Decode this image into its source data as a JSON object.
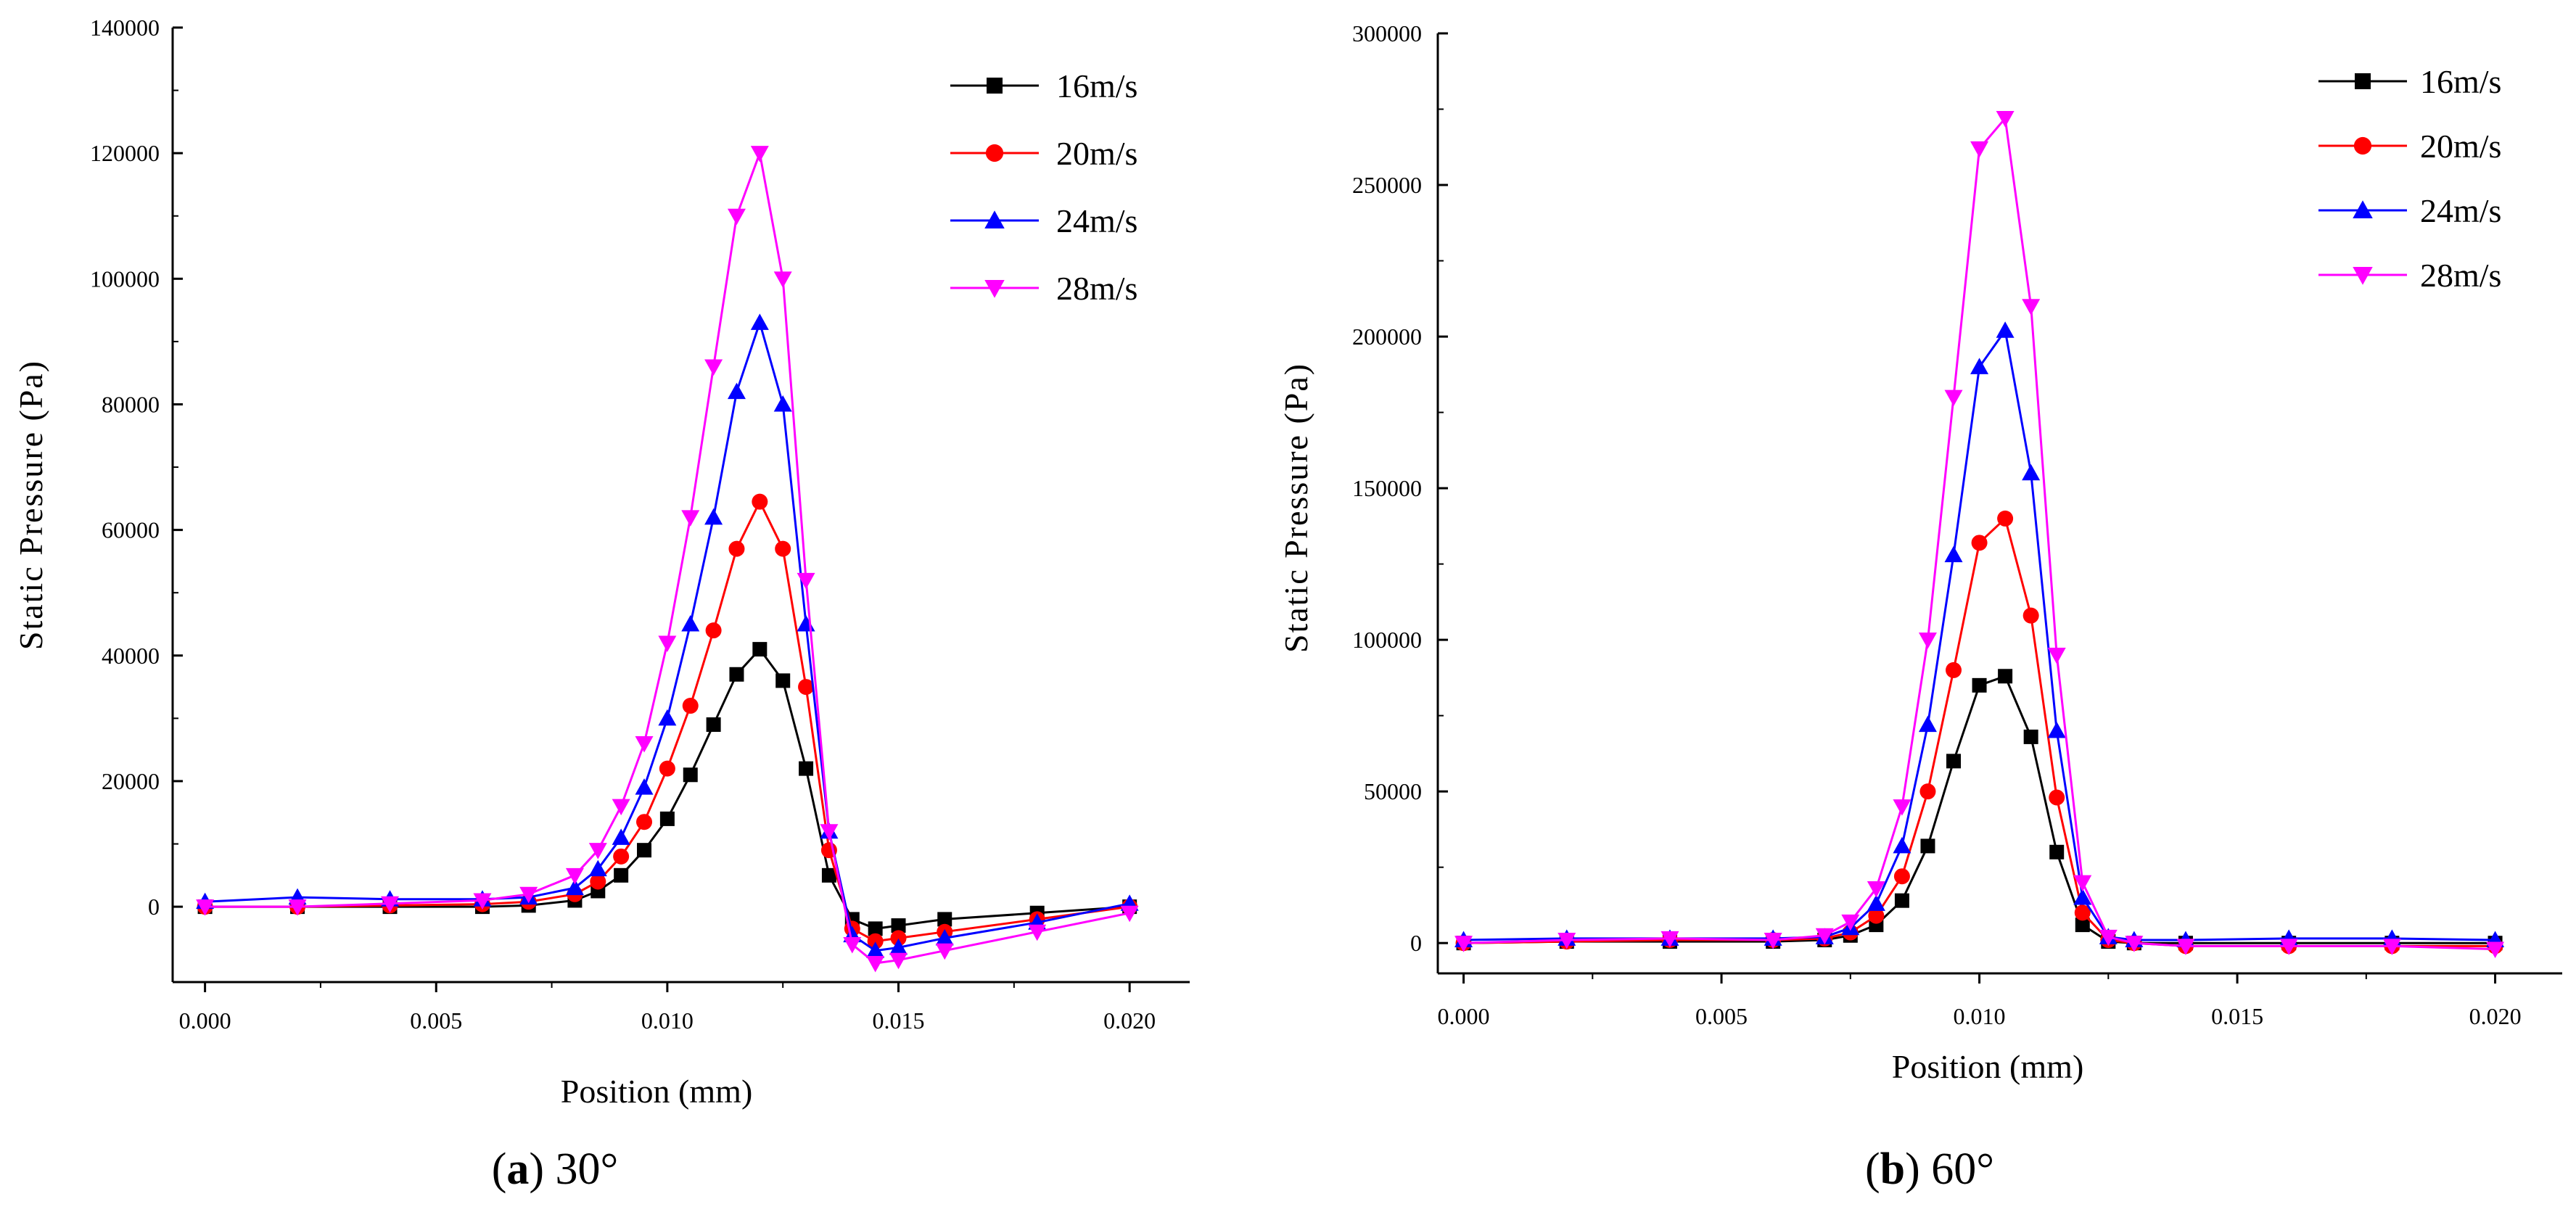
{
  "chart_data": [
    {
      "type": "line",
      "caption_letter": "a",
      "caption_angle": "30°",
      "title": "",
      "xlabel": "Position (mm)",
      "ylabel": "Static Pressure (Pa)",
      "xlim": [
        -0.0007,
        0.0213
      ],
      "ylim": [
        -12000,
        140000
      ],
      "xticks": [
        0.0,
        0.005,
        0.01,
        0.015,
        0.02
      ],
      "xtick_labels": [
        "0.000",
        "0.005",
        "0.010",
        "0.015",
        "0.020"
      ],
      "yticks": [
        0,
        20000,
        40000,
        60000,
        80000,
        100000,
        120000,
        140000
      ],
      "ytick_labels": [
        "0",
        "20000",
        "40000",
        "60000",
        "80000",
        "100000",
        "120000",
        "140000"
      ],
      "legend_position": "top-right",
      "series": [
        {
          "name": "16m/s",
          "color": "#000000",
          "marker": "square",
          "x": [
            0.0,
            0.002,
            0.004,
            0.006,
            0.007,
            0.008,
            0.0085,
            0.009,
            0.0095,
            0.01,
            0.0105,
            0.011,
            0.0115,
            0.012,
            0.0125,
            0.013,
            0.0135,
            0.014,
            0.0145,
            0.015,
            0.016,
            0.018,
            0.02
          ],
          "values": [
            0,
            0,
            0,
            0,
            200,
            1000,
            2500,
            5000,
            9000,
            14000,
            21000,
            29000,
            37000,
            41000,
            36000,
            22000,
            5000,
            -2000,
            -3500,
            -3000,
            -2000,
            -1000,
            0
          ]
        },
        {
          "name": "20m/s",
          "color": "#ff0000",
          "marker": "circle",
          "x": [
            0.0,
            0.002,
            0.004,
            0.006,
            0.007,
            0.008,
            0.0085,
            0.009,
            0.0095,
            0.01,
            0.0105,
            0.011,
            0.0115,
            0.012,
            0.0125,
            0.013,
            0.0135,
            0.014,
            0.0145,
            0.015,
            0.016,
            0.018,
            0.02
          ],
          "values": [
            0,
            0,
            200,
            400,
            800,
            2000,
            4000,
            8000,
            13500,
            22000,
            32000,
            44000,
            57000,
            64500,
            57000,
            35000,
            9000,
            -3500,
            -5500,
            -5000,
            -4000,
            -2000,
            0
          ]
        },
        {
          "name": "24m/s",
          "color": "#0000ff",
          "marker": "triangle-up",
          "x": [
            0.0,
            0.002,
            0.004,
            0.006,
            0.007,
            0.008,
            0.0085,
            0.009,
            0.0095,
            0.01,
            0.0105,
            0.011,
            0.0115,
            0.012,
            0.0125,
            0.013,
            0.0135,
            0.014,
            0.0145,
            0.015,
            0.016,
            0.018,
            0.02
          ],
          "values": [
            800,
            1500,
            1200,
            1200,
            1500,
            3000,
            6000,
            11000,
            19000,
            30000,
            45000,
            62000,
            82000,
            93000,
            80000,
            45000,
            12000,
            -4500,
            -7000,
            -6500,
            -5000,
            -2500,
            500
          ]
        },
        {
          "name": "28m/s",
          "color": "#ff00ff",
          "marker": "triangle-down",
          "x": [
            0.0,
            0.002,
            0.004,
            0.006,
            0.007,
            0.008,
            0.0085,
            0.009,
            0.0095,
            0.01,
            0.0105,
            0.011,
            0.0115,
            0.012,
            0.0125,
            0.013,
            0.0135,
            0.014,
            0.0145,
            0.015,
            0.016,
            0.018,
            0.02
          ],
          "values": [
            0,
            0,
            500,
            1000,
            2000,
            5000,
            9000,
            16000,
            26000,
            42000,
            62000,
            86000,
            110000,
            120000,
            100000,
            52000,
            12000,
            -6000,
            -9000,
            -8500,
            -7000,
            -4000,
            -1000
          ]
        }
      ]
    },
    {
      "type": "line",
      "caption_letter": "b",
      "caption_angle": "60°",
      "title": "",
      "xlabel": "Position (mm)",
      "ylabel": "Static Pressure (Pa)",
      "xlim": [
        -0.0005,
        0.0213
      ],
      "ylim": [
        -10000,
        300000
      ],
      "xticks": [
        0.0,
        0.005,
        0.01,
        0.015,
        0.02
      ],
      "xtick_labels": [
        "0.000",
        "0.005",
        "0.010",
        "0.015",
        "0.020"
      ],
      "yticks": [
        0,
        50000,
        100000,
        150000,
        200000,
        250000,
        300000
      ],
      "ytick_labels": [
        "0",
        "50000",
        "100000",
        "150000",
        "200000",
        "250000",
        "300000"
      ],
      "legend_position": "top-right",
      "series": [
        {
          "name": "16m/s",
          "color": "#000000",
          "marker": "square",
          "x": [
            0.0,
            0.002,
            0.004,
            0.006,
            0.007,
            0.0075,
            0.008,
            0.0085,
            0.009,
            0.0095,
            0.01,
            0.0105,
            0.011,
            0.0115,
            0.012,
            0.0125,
            0.013,
            0.014,
            0.016,
            0.018,
            0.02
          ],
          "values": [
            0,
            500,
            500,
            500,
            1000,
            2500,
            6000,
            14000,
            32000,
            60000,
            85000,
            88000,
            68000,
            30000,
            6000,
            500,
            0,
            0,
            0,
            0,
            0
          ]
        },
        {
          "name": "20m/s",
          "color": "#ff0000",
          "marker": "circle",
          "x": [
            0.0,
            0.002,
            0.004,
            0.006,
            0.007,
            0.0075,
            0.008,
            0.0085,
            0.009,
            0.0095,
            0.01,
            0.0105,
            0.011,
            0.0115,
            0.012,
            0.0125,
            0.013,
            0.014,
            0.016,
            0.018,
            0.02
          ],
          "values": [
            0,
            500,
            1000,
            1000,
            1500,
            3500,
            9000,
            22000,
            50000,
            90000,
            132000,
            140000,
            108000,
            48000,
            10000,
            1000,
            0,
            -1000,
            -1000,
            -1000,
            -1000
          ]
        },
        {
          "name": "24m/s",
          "color": "#0000ff",
          "marker": "triangle-up",
          "x": [
            0.0,
            0.002,
            0.004,
            0.006,
            0.007,
            0.0075,
            0.008,
            0.0085,
            0.009,
            0.0095,
            0.01,
            0.0105,
            0.011,
            0.0115,
            0.012,
            0.0125,
            0.013,
            0.014,
            0.016,
            0.018,
            0.02
          ],
          "values": [
            1000,
            1500,
            1500,
            1500,
            2000,
            5000,
            13000,
            32000,
            72000,
            128000,
            190000,
            202000,
            155000,
            70000,
            15000,
            2000,
            1000,
            1000,
            1500,
            1500,
            1000
          ]
        },
        {
          "name": "28m/s",
          "color": "#ff00ff",
          "marker": "triangle-down",
          "x": [
            0.0,
            0.002,
            0.004,
            0.006,
            0.007,
            0.0075,
            0.008,
            0.0085,
            0.009,
            0.0095,
            0.01,
            0.0105,
            0.011,
            0.0115,
            0.012,
            0.0125,
            0.013,
            0.014,
            0.016,
            0.018,
            0.02
          ],
          "values": [
            0,
            1000,
            1500,
            1000,
            2500,
            7000,
            18000,
            45000,
            100000,
            180000,
            262000,
            272000,
            210000,
            95000,
            20000,
            2000,
            0,
            -1000,
            -1000,
            -1000,
            -2000
          ]
        }
      ]
    }
  ]
}
